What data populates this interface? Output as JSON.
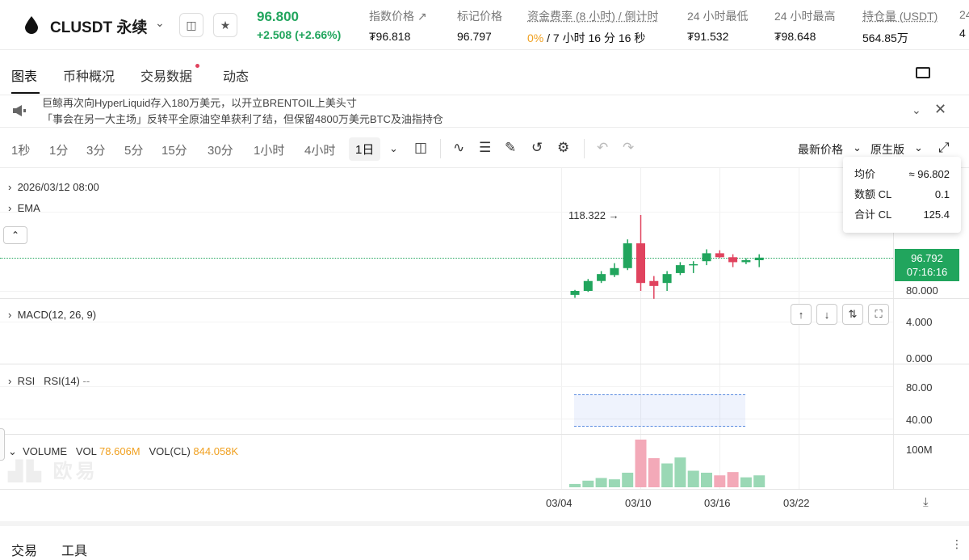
{
  "header": {
    "symbol": "CLUSDT 永续",
    "last_price": "96.800",
    "change": "+2.508 (+2.66%)",
    "stats": [
      {
        "label": "指数价格",
        "value": "₮96.818"
      },
      {
        "label": "标记价格",
        "value": "96.797"
      },
      {
        "label": "资金费率 (8 小时) / 倒计时",
        "value_rate": "0%",
        "value_rest": " / 7 小时 16 分 16 秒"
      },
      {
        "label": "24 小时最低",
        "value": "₮91.532"
      },
      {
        "label": "24 小时最高",
        "value": "₮98.648"
      },
      {
        "label": "持仓量 (USDT)",
        "value": "564.85万"
      },
      {
        "label": "24",
        "value": "4"
      }
    ]
  },
  "tabs": [
    "图表",
    "币种概况",
    "交易数据",
    "动态"
  ],
  "news": {
    "line1": "巨鲸再次向HyperLiquid存入180万美元，以开立BRENTOIL上美头寸",
    "line2": "「事会在另一大主场」反转平全原油空单获利了结，但保留4800万美元BTC及油指持仓"
  },
  "toolbar": {
    "intervals": [
      "1秒",
      "1分",
      "3分",
      "5分",
      "15分",
      "30分",
      "1小时",
      "4小时",
      "1日"
    ],
    "price_type": "最新价格",
    "version": "原生版"
  },
  "chart_data": {
    "type": "candlestick",
    "header_date": "2026/03/12 08:00",
    "overlay": "EMA",
    "x_ticks": [
      "03/04",
      "03/10",
      "03/16",
      "03/22"
    ],
    "price_axis": [
      "80.000"
    ],
    "max_label": "118.322",
    "current_price": "96.792",
    "countdown": "07:16:16",
    "candles": [
      {
        "o": 78.0,
        "h": 80.5,
        "l": 76.5,
        "c": 80.0,
        "v": 5,
        "up": true
      },
      {
        "o": 80.0,
        "h": 86.0,
        "l": 79.5,
        "c": 85.0,
        "v": 10,
        "up": true
      },
      {
        "o": 85.0,
        "h": 90.0,
        "l": 84.0,
        "c": 88.5,
        "v": 14,
        "up": true
      },
      {
        "o": 88.0,
        "h": 94.0,
        "l": 87.0,
        "c": 91.5,
        "v": 12,
        "up": true
      },
      {
        "o": 91.5,
        "h": 106.0,
        "l": 90.5,
        "c": 104.0,
        "v": 22,
        "up": true
      },
      {
        "o": 104.0,
        "h": 118.322,
        "l": 80.0,
        "c": 84.0,
        "v": 72,
        "up": false
      },
      {
        "o": 85.0,
        "h": 87.5,
        "l": 76.0,
        "c": 82.5,
        "v": 44,
        "up": false
      },
      {
        "o": 84.0,
        "h": 90.0,
        "l": 80.0,
        "c": 88.5,
        "v": 36,
        "up": true
      },
      {
        "o": 89.0,
        "h": 94.5,
        "l": 88.0,
        "c": 93.0,
        "v": 45,
        "up": true
      },
      {
        "o": 93.0,
        "h": 95.0,
        "l": 89.0,
        "c": 93.5,
        "v": 25,
        "up": true
      },
      {
        "o": 95.0,
        "h": 101.0,
        "l": 93.0,
        "c": 99.0,
        "v": 22,
        "up": true
      },
      {
        "o": 99.0,
        "h": 100.5,
        "l": 96.5,
        "c": 97.0,
        "v": 18,
        "up": false
      },
      {
        "o": 97.0,
        "h": 98.5,
        "l": 92.0,
        "c": 94.5,
        "v": 23,
        "up": false
      },
      {
        "o": 94.5,
        "h": 96.5,
        "l": 93.5,
        "c": 95.5,
        "v": 15,
        "up": true
      },
      {
        "o": 95.5,
        "h": 98.5,
        "l": 92.0,
        "c": 96.8,
        "v": 18,
        "up": true
      }
    ]
  },
  "macd": {
    "label": "MACD(12, 26, 9)",
    "axis": [
      "4.000",
      "0.000"
    ]
  },
  "rsi": {
    "label": "RSI",
    "sub": "RSI(14)",
    "value": "--",
    "axis": [
      "80.00",
      "40.00"
    ]
  },
  "volume": {
    "label": "VOLUME",
    "vol_label": "VOL",
    "vol_value": "78.606M",
    "volcl_label": "VOL(CL)",
    "volcl_value": "844.058K",
    "axis": "100M"
  },
  "tooltip": {
    "rows": [
      {
        "k": "均价",
        "v": "≈ 96.802"
      },
      {
        "k": "数额 CL",
        "v": "0.1"
      },
      {
        "k": "合计 CL",
        "v": "125.4"
      }
    ]
  },
  "bottom_tabs": [
    "交易",
    "工具"
  ],
  "colors": {
    "up": "#21a55d",
    "down": "#e0435e",
    "up_vol": "#9ad8b5",
    "down_vol": "#f3a9b8"
  }
}
